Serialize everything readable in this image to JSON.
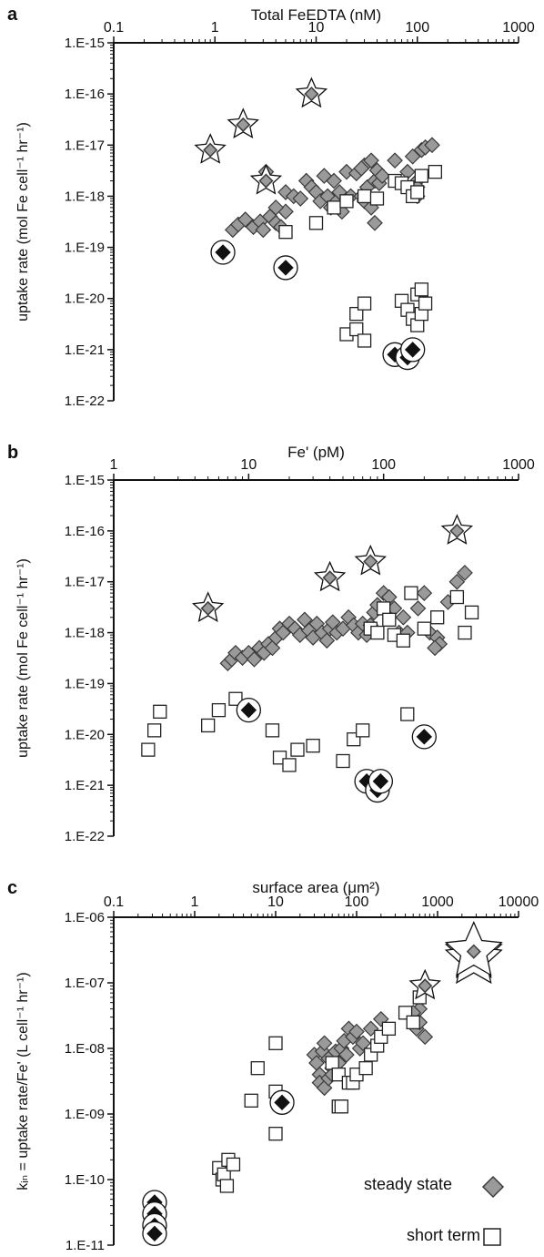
{
  "colors": {
    "steady_fill": "#9a9a9a",
    "steady_stroke": "#3a3a3a",
    "short_fill": "#ffffff",
    "short_stroke": "#222222",
    "filled": "#111111"
  },
  "legend": {
    "steady_label": "steady state",
    "short_label": "short term",
    "steady_icon": "diamond-grey",
    "short_icon": "square-open"
  },
  "chart_data": [
    {
      "panel": "a",
      "type": "scatter",
      "x_axis": {
        "label": "Total FeEDTA (nM)",
        "scale": "log",
        "lim": [
          0.1,
          1000
        ],
        "ticks": [
          "0.1",
          "1",
          "10",
          "100",
          "1000"
        ],
        "position": "top"
      },
      "y_axis": {
        "label": "uptake rate (mol Fe cell⁻¹ hr⁻¹)",
        "scale": "log",
        "lim": [
          1e-22,
          1e-15
        ],
        "ticks": [
          "1.E-15",
          "1.E-16",
          "1.E-17",
          "1.E-18",
          "1.E-19",
          "1.E-20",
          "1.E-21",
          "1.E-22"
        ]
      },
      "series": [
        {
          "name": "steady state",
          "marker": "diamond-grey",
          "points": [
            [
              1.5,
              2.2e-19
            ],
            [
              1.7,
              2.8e-19
            ],
            [
              2,
              3.5e-19
            ],
            [
              2.4,
              2.5e-19
            ],
            [
              2.8,
              3.2e-19
            ],
            [
              3,
              2.2e-19
            ],
            [
              3.5,
              4e-19
            ],
            [
              4,
              3e-19
            ],
            [
              4.5,
              2.5e-19
            ],
            [
              5,
              5e-19
            ],
            [
              4,
              6e-19
            ],
            [
              3.2,
              3e-18
            ],
            [
              5,
              1.2e-18
            ],
            [
              6,
              1e-18
            ],
            [
              7,
              9e-19
            ],
            [
              8,
              2e-18
            ],
            [
              9,
              1.5e-18
            ],
            [
              10,
              1.2e-18
            ],
            [
              11,
              8e-19
            ],
            [
              12,
              2.5e-18
            ],
            [
              13,
              1e-18
            ],
            [
              14,
              6e-19
            ],
            [
              15,
              2e-18
            ],
            [
              16,
              8e-19
            ],
            [
              17,
              1.2e-18
            ],
            [
              18,
              5e-19
            ],
            [
              20,
              3e-18
            ],
            [
              22,
              1e-18
            ],
            [
              25,
              2.8e-18
            ],
            [
              28,
              1e-18
            ],
            [
              30,
              8e-19
            ],
            [
              32,
              1.5e-18
            ],
            [
              35,
              6e-19
            ],
            [
              38,
              2e-18
            ],
            [
              40,
              3.2e-18
            ],
            [
              42,
              1.8e-18
            ],
            [
              45,
              2.5e-18
            ],
            [
              30,
              4e-18
            ],
            [
              35,
              5e-18
            ],
            [
              28,
              3.5e-18
            ],
            [
              38,
              3e-19
            ],
            [
              60,
              5e-18
            ],
            [
              80,
              3e-18
            ],
            [
              90,
              6e-18
            ],
            [
              100,
              2e-18
            ],
            [
              110,
              8e-18
            ],
            [
              120,
              9e-18
            ],
            [
              140,
              1e-17
            ],
            [
              100,
              1.5e-18
            ],
            [
              100,
              1e-18
            ]
          ]
        },
        {
          "name": "short term",
          "marker": "square-open",
          "points": [
            [
              5,
              2e-19
            ],
            [
              10,
              3e-19
            ],
            [
              15,
              6e-19
            ],
            [
              20,
              8e-19
            ],
            [
              30,
              1e-18
            ],
            [
              40,
              9e-19
            ],
            [
              60,
              2e-18
            ],
            [
              70,
              1.8e-18
            ],
            [
              80,
              1.5e-18
            ],
            [
              90,
              1e-18
            ],
            [
              100,
              1.2e-18
            ],
            [
              110,
              2.5e-18
            ],
            [
              150,
              3e-18
            ],
            [
              25,
              5e-21
            ],
            [
              30,
              8e-21
            ],
            [
              20,
              2e-21
            ],
            [
              25,
              2.5e-21
            ],
            [
              30,
              1.5e-21
            ],
            [
              70,
              9e-21
            ],
            [
              80,
              6e-21
            ],
            [
              90,
              4e-21
            ],
            [
              100,
              3e-21
            ],
            [
              100,
              1.2e-20
            ],
            [
              110,
              1.5e-20
            ],
            [
              110,
              5e-21
            ],
            [
              120,
              8e-21
            ]
          ]
        },
        {
          "name": "",
          "marker": "filled-circled",
          "points": [
            [
              1.2,
              8e-20
            ],
            [
              5,
              4e-20
            ],
            [
              60,
              8e-22
            ],
            [
              80,
              7e-22
            ],
            [
              90,
              1e-21
            ]
          ]
        },
        {
          "name": "",
          "marker": "diamond-starred",
          "points": [
            [
              0.9,
              8e-18
            ],
            [
              1.9,
              2.5e-17
            ],
            [
              9,
              1e-16
            ],
            [
              3.2,
              2e-18
            ]
          ]
        }
      ]
    },
    {
      "panel": "b",
      "type": "scatter",
      "x_axis": {
        "label": "Fe' (pM)",
        "scale": "log",
        "lim": [
          1,
          1000
        ],
        "ticks": [
          "1",
          "10",
          "100",
          "1000"
        ],
        "position": "top"
      },
      "y_axis": {
        "label": "uptake rate (mol Fe cell⁻¹ hr⁻¹)",
        "scale": "log",
        "lim": [
          1e-22,
          1e-15
        ],
        "ticks": [
          "1.E-15",
          "1.E-16",
          "1.E-17",
          "1.E-18",
          "1.E-19",
          "1.E-20",
          "1.E-21",
          "1.E-22"
        ]
      },
      "series": [
        {
          "name": "steady state",
          "marker": "diamond-grey",
          "points": [
            [
              7,
              2.5e-19
            ],
            [
              7.5,
              3e-19
            ],
            [
              8,
              4e-19
            ],
            [
              9,
              3.2e-19
            ],
            [
              10,
              4e-19
            ],
            [
              11,
              3e-19
            ],
            [
              12,
              5e-19
            ],
            [
              13,
              4e-19
            ],
            [
              14,
              6e-19
            ],
            [
              15,
              5e-19
            ],
            [
              16,
              8e-19
            ],
            [
              17,
              1.2e-18
            ],
            [
              18,
              1e-18
            ],
            [
              20,
              1.5e-18
            ],
            [
              22,
              1.2e-18
            ],
            [
              24,
              9e-19
            ],
            [
              26,
              1.8e-18
            ],
            [
              28,
              1.1e-18
            ],
            [
              30,
              8e-19
            ],
            [
              32,
              1.5e-18
            ],
            [
              35,
              1e-18
            ],
            [
              38,
              7e-19
            ],
            [
              40,
              1.2e-18
            ],
            [
              42,
              1.6e-18
            ],
            [
              45,
              1e-18
            ],
            [
              50,
              1.2e-18
            ],
            [
              55,
              2e-18
            ],
            [
              60,
              1.4e-18
            ],
            [
              65,
              1e-18
            ],
            [
              70,
              1.5e-18
            ],
            [
              75,
              9e-19
            ],
            [
              80,
              1.4e-18
            ],
            [
              85,
              2.5e-18
            ],
            [
              90,
              3.5e-18
            ],
            [
              100,
              6e-18
            ],
            [
              110,
              5e-18
            ],
            [
              120,
              3e-18
            ],
            [
              130,
              1e-18
            ],
            [
              140,
              2e-18
            ],
            [
              150,
              1e-18
            ],
            [
              180,
              3e-18
            ],
            [
              200,
              6e-18
            ],
            [
              220,
              1e-18
            ],
            [
              250,
              8e-19
            ],
            [
              300,
              4e-18
            ],
            [
              350,
              1e-17
            ],
            [
              400,
              1.5e-17
            ],
            [
              260,
              6e-19
            ],
            [
              240,
              5e-19
            ]
          ]
        },
        {
          "name": "short term",
          "marker": "square-open",
          "points": [
            [
              1.8,
              5e-21
            ],
            [
              2,
              1.2e-20
            ],
            [
              2.2,
              2.8e-20
            ],
            [
              5,
              1.5e-20
            ],
            [
              6,
              3e-20
            ],
            [
              8,
              5e-20
            ],
            [
              15,
              1.2e-20
            ],
            [
              17,
              3.5e-21
            ],
            [
              20,
              2.5e-21
            ],
            [
              23,
              5e-21
            ],
            [
              30,
              6e-21
            ],
            [
              50,
              3e-21
            ],
            [
              60,
              8e-21
            ],
            [
              70,
              1.2e-20
            ],
            [
              80,
              1.2e-18
            ],
            [
              90,
              1e-18
            ],
            [
              100,
              3e-18
            ],
            [
              110,
              1.8e-18
            ],
            [
              120,
              9e-19
            ],
            [
              140,
              7e-19
            ],
            [
              160,
              6e-18
            ],
            [
              200,
              1.2e-18
            ],
            [
              250,
              2e-18
            ],
            [
              350,
              5e-18
            ],
            [
              400,
              1e-18
            ],
            [
              450,
              2.5e-18
            ],
            [
              150,
              2.5e-20
            ]
          ]
        },
        {
          "name": "",
          "marker": "filled-circled",
          "points": [
            [
              10,
              3e-20
            ],
            [
              75,
              1.2e-21
            ],
            [
              90,
              8e-22
            ],
            [
              95,
              1.2e-21
            ],
            [
              200,
              9e-21
            ]
          ]
        },
        {
          "name": "",
          "marker": "diamond-starred",
          "points": [
            [
              5,
              3e-18
            ],
            [
              40,
              1.2e-17
            ],
            [
              80,
              2.5e-17
            ],
            [
              350,
              1e-16
            ]
          ]
        }
      ]
    },
    {
      "panel": "c",
      "type": "scatter",
      "x_axis": {
        "label": "surface area (μm²)",
        "scale": "log",
        "lim": [
          0.1,
          10000
        ],
        "ticks": [
          "0.1",
          "1",
          "10",
          "100",
          "1000",
          "10000"
        ],
        "position": "top"
      },
      "y_axis": {
        "label": "kᵢₙ = uptake rate/Fe' (L cell⁻¹ hr⁻¹)",
        "scale": "log",
        "lim": [
          1e-11,
          1e-06
        ],
        "ticks": [
          "1.E-06",
          "1.E-07",
          "1.E-08",
          "1.E-09",
          "1.E-10",
          "1.E-11"
        ]
      },
      "series": [
        {
          "name": "steady state",
          "marker": "diamond-grey",
          "points": [
            [
              30,
              8e-09
            ],
            [
              32,
              6e-09
            ],
            [
              35,
              4e-09
            ],
            [
              38,
              9e-09
            ],
            [
              40,
              1.2e-08
            ],
            [
              45,
              7e-09
            ],
            [
              50,
              5e-09
            ],
            [
              55,
              9e-09
            ],
            [
              60,
              6e-09
            ],
            [
              65,
              1e-08
            ],
            [
              70,
              1.3e-08
            ],
            [
              75,
              8e-09
            ],
            [
              80,
              2e-08
            ],
            [
              90,
              1.5e-08
            ],
            [
              100,
              1.8e-08
            ],
            [
              110,
              1e-08
            ],
            [
              120,
              1.2e-08
            ],
            [
              150,
              2e-08
            ],
            [
              200,
              2.8e-08
            ],
            [
              500,
              3e-08
            ],
            [
              550,
              2e-08
            ],
            [
              600,
              2.5e-08
            ],
            [
              700,
              1.5e-08
            ],
            [
              600,
              4e-08
            ],
            [
              500,
              3.5e-08
            ],
            [
              35,
              3e-09
            ],
            [
              40,
              2.5e-09
            ],
            [
              45,
              3.5e-09
            ],
            [
              50,
              4e-09
            ]
          ]
        },
        {
          "name": "short term",
          "marker": "square-open",
          "points": [
            [
              2,
              1.5e-10
            ],
            [
              2.2,
              1e-10
            ],
            [
              2.3,
              1.2e-10
            ],
            [
              2.5,
              8e-11
            ],
            [
              2.6,
              2e-10
            ],
            [
              3,
              1.7e-10
            ],
            [
              5,
              1.6e-09
            ],
            [
              6,
              5e-09
            ],
            [
              10,
              1.2e-08
            ],
            [
              10,
              2.2e-09
            ],
            [
              10,
              5e-10
            ],
            [
              50,
              6e-09
            ],
            [
              60,
              4e-09
            ],
            [
              80,
              3e-09
            ],
            [
              90,
              3e-09
            ],
            [
              100,
              4e-09
            ],
            [
              130,
              5e-09
            ],
            [
              150,
              8e-09
            ],
            [
              180,
              1.1e-08
            ],
            [
              200,
              1.5e-08
            ],
            [
              250,
              2e-08
            ],
            [
              400,
              3.5e-08
            ],
            [
              500,
              2.5e-08
            ],
            [
              600,
              6e-08
            ],
            [
              60,
              1.3e-09
            ],
            [
              65,
              1.3e-09
            ]
          ]
        },
        {
          "name": "",
          "marker": "filled-circled",
          "points": [
            [
              0.32,
              4.5e-11
            ],
            [
              0.32,
              3e-11
            ],
            [
              0.32,
              2e-11
            ],
            [
              0.32,
              1.5e-11
            ],
            [
              12,
              1.5e-09
            ]
          ]
        },
        {
          "name": "",
          "marker": "diamond-starred",
          "points": [
            [
              700,
              9e-08
            ],
            [
              2800,
              2.8e-07
            ],
            [
              2800,
              2.3e-07
            ],
            [
              2800,
              3e-07
            ]
          ]
        }
      ]
    }
  ]
}
